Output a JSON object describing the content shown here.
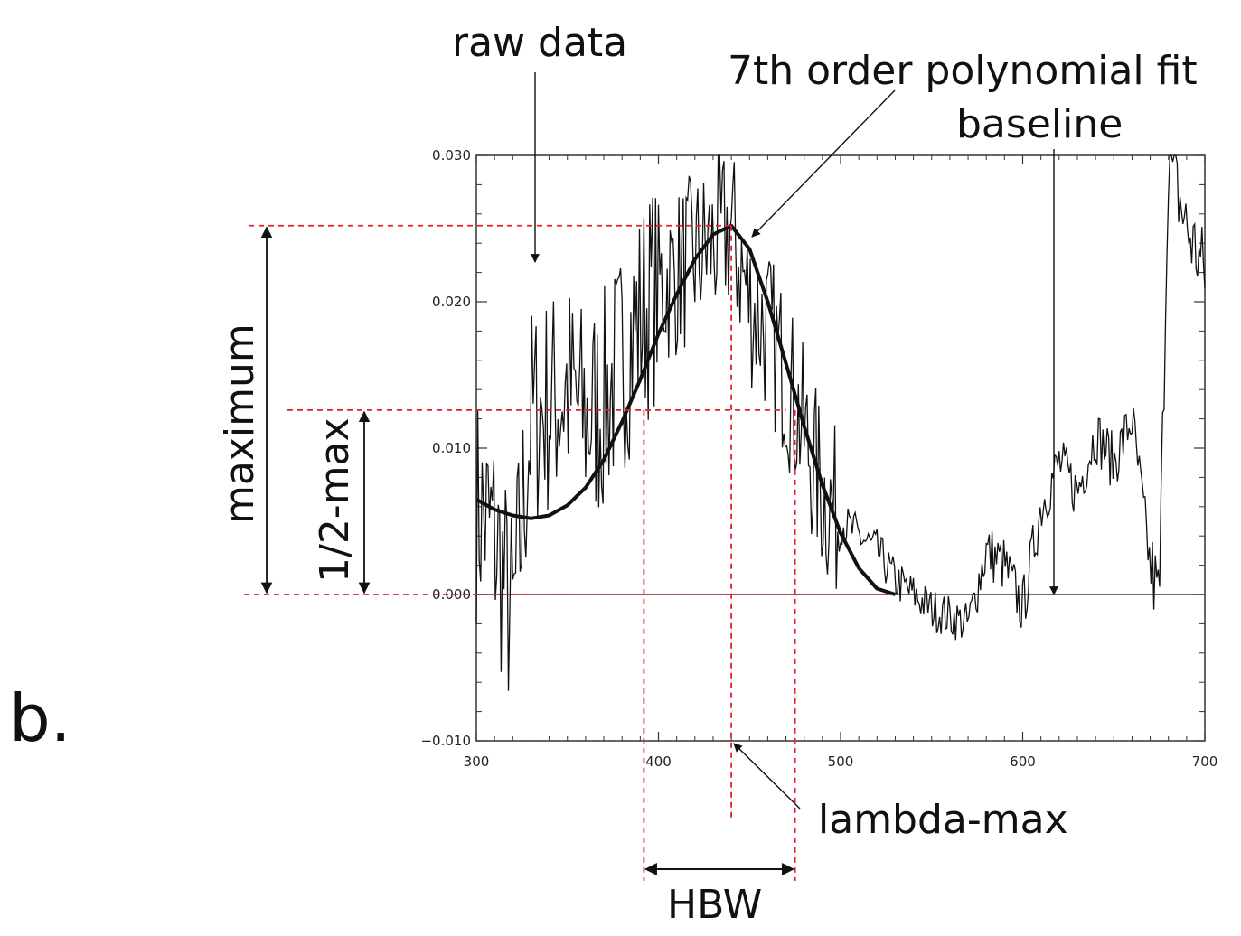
{
  "panel_label": "b.",
  "annotations": {
    "raw_data": "raw data",
    "fit": "7th order polynomial fit",
    "baseline": "baseline",
    "maximum": "maximum",
    "half_max": "1/2-max",
    "lambda_max": "lambda-max",
    "hbw": "HBW"
  },
  "colors": {
    "guide": "#e0202a",
    "data": "#111111",
    "axis": "#333333"
  },
  "chart_data": {
    "type": "line",
    "xlim": [
      300,
      700
    ],
    "ylim": [
      -0.01,
      0.03
    ],
    "xticks": [
      300,
      400,
      500,
      600,
      700
    ],
    "xtick_labels": [
      "300",
      "400",
      "500",
      "600",
      "700"
    ],
    "yticks": [
      -0.01,
      0.0,
      0.01,
      0.02,
      0.03
    ],
    "ytick_labels": [
      "−0.010",
      "0.000",
      "0.010",
      "0.020",
      "0.030"
    ],
    "grid": false,
    "baseline_y": 0.0,
    "maximum_y": 0.0252,
    "half_max_y": 0.0126,
    "lambda_max_x": 440,
    "hbw_x": [
      392,
      475
    ],
    "series": [
      {
        "style": "noisy",
        "x": [
          300,
          310,
          320,
          330,
          340,
          350,
          360,
          370,
          380,
          390,
          400,
          410,
          420,
          430,
          440,
          450,
          460,
          470,
          480,
          490,
          500,
          510,
          520,
          530,
          540,
          550,
          560,
          570,
          580,
          590,
          600,
          610,
          620,
          630,
          640,
          650,
          660,
          670,
          675,
          680,
          690,
          700
        ],
        "y": [
          0.006,
          0.004,
          -0.002,
          0.012,
          0.013,
          0.014,
          0.012,
          0.013,
          0.016,
          0.019,
          0.021,
          0.022,
          0.023,
          0.024,
          0.025,
          0.02,
          0.018,
          0.015,
          0.011,
          0.007,
          0.005,
          0.004,
          0.003,
          0.001,
          0.0,
          -0.001,
          -0.0015,
          -0.002,
          0.003,
          0.002,
          -0.001,
          0.006,
          0.009,
          0.007,
          0.011,
          0.009,
          0.012,
          0.002,
          -0.0005,
          0.03,
          0.025,
          0.022
        ]
      },
      {
        "style": "fit",
        "x": [
          300,
          310,
          320,
          330,
          340,
          350,
          360,
          370,
          380,
          390,
          400,
          410,
          420,
          430,
          440,
          450,
          460,
          470,
          480,
          490,
          500,
          510,
          520,
          530
        ],
        "y": [
          0.0065,
          0.0058,
          0.0054,
          0.0052,
          0.0054,
          0.0061,
          0.0073,
          0.0092,
          0.0118,
          0.0147,
          0.0178,
          0.0205,
          0.0229,
          0.0246,
          0.0252,
          0.0236,
          0.02,
          0.0158,
          0.0115,
          0.0075,
          0.0042,
          0.0018,
          0.0004,
          0.0
        ]
      }
    ]
  }
}
